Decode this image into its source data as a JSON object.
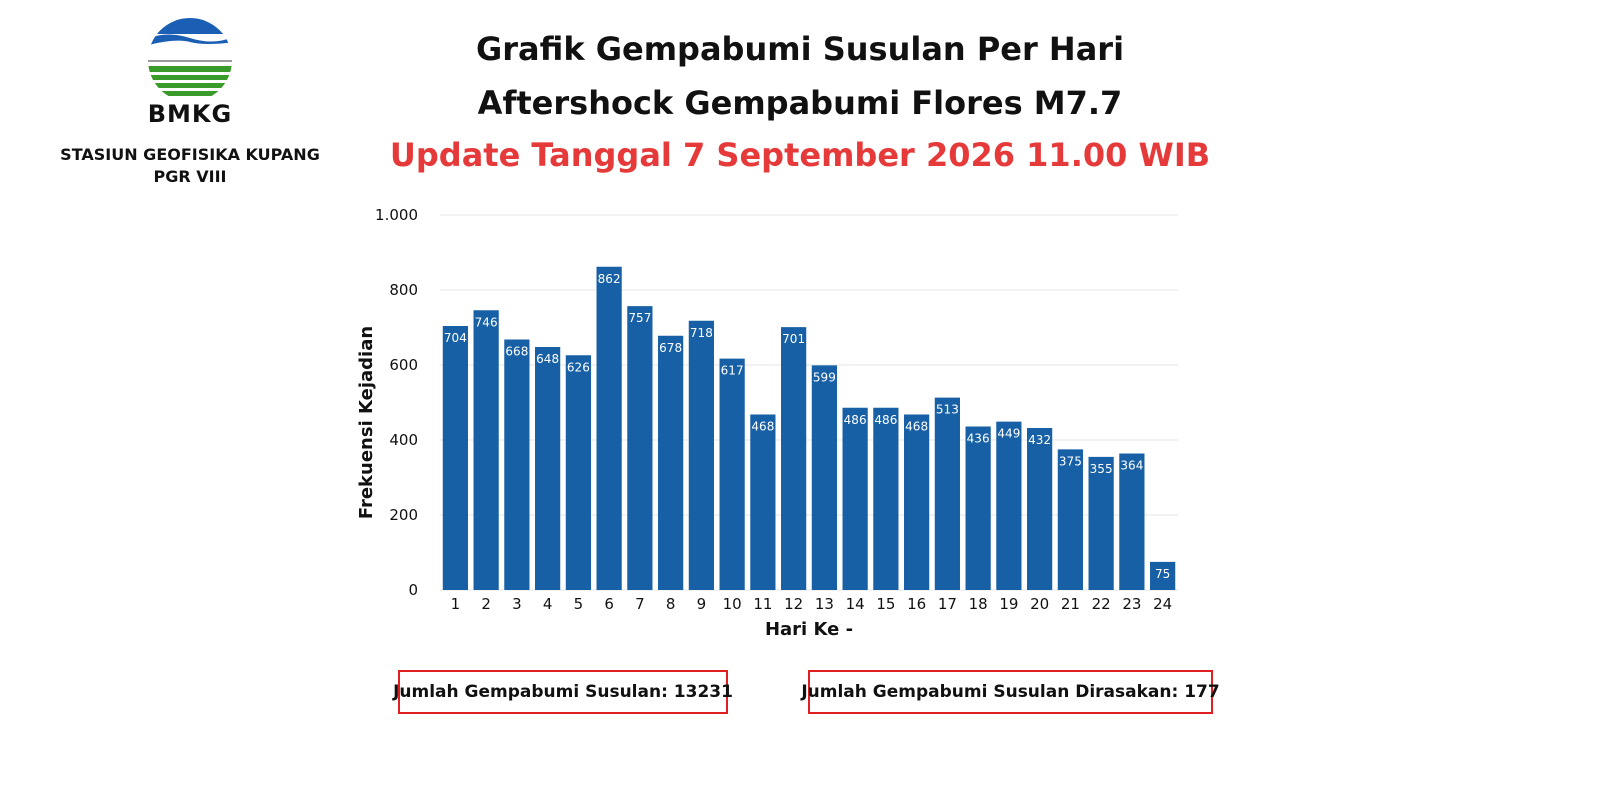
{
  "logo": {
    "text": "BMKG",
    "station_line1": "STASIUN GEOFISIKA KUPANG",
    "station_line2": "PGR VIII",
    "colors": {
      "blue": "#1a5fb4",
      "green": "#3a9a2a",
      "gray": "#9a9a9a"
    }
  },
  "header": {
    "title": "Grafik Gempabumi Susulan Per Hari",
    "subtitle": "Aftershock Gempabumi Flores M7.7",
    "update": "Update Tanggal 7 September 2026 11.00 WIB",
    "update_color": "#e63a3a"
  },
  "chart_data": {
    "type": "bar",
    "categories": [
      "1",
      "2",
      "3",
      "4",
      "5",
      "6",
      "7",
      "8",
      "9",
      "10",
      "11",
      "12",
      "13",
      "14",
      "15",
      "16",
      "17",
      "18",
      "19",
      "20",
      "21",
      "22",
      "23",
      "24"
    ],
    "values": [
      704,
      746,
      668,
      648,
      626,
      862,
      757,
      678,
      718,
      617,
      468,
      701,
      599,
      486,
      486,
      468,
      513,
      436,
      449,
      432,
      375,
      355,
      364,
      75
    ],
    "xlabel": "Hari Ke -",
    "ylabel": "Frekuensi Kejadian",
    "ylim": [
      0,
      1000
    ],
    "yticks": [
      0,
      200,
      400,
      600,
      800,
      1000
    ],
    "ytick_labels": [
      "0",
      "200",
      "400",
      "600",
      "800",
      "1.000"
    ],
    "bar_color": "#1760a6",
    "grid": true,
    "data_labels": true
  },
  "summary": {
    "total": "Jumlah Gempabumi Susulan: 13231",
    "felt": "Jumlah Gempabumi Susulan Dirasakan: 177",
    "border_color": "#e02020"
  }
}
